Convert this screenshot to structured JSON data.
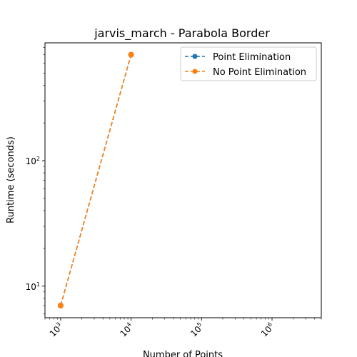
{
  "chart_data": {
    "type": "line",
    "title": "jarvis_march - Parabola Border",
    "xlabel": "Number of Points",
    "ylabel": "Runtime (seconds)",
    "xscale": "log",
    "yscale": "log",
    "xlim": [
      600,
      5000000
    ],
    "ylim": [
      5.6,
      870
    ],
    "x_ticks": [
      {
        "value": 1000,
        "base": "10",
        "exp": "3"
      },
      {
        "value": 10000,
        "base": "10",
        "exp": "4"
      },
      {
        "value": 100000,
        "base": "10",
        "exp": "5"
      },
      {
        "value": 1000000,
        "base": "10",
        "exp": "6"
      }
    ],
    "y_ticks": [
      {
        "value": 10,
        "base": "10",
        "exp": "1"
      },
      {
        "value": 100,
        "base": "10",
        "exp": "2"
      }
    ],
    "legend_position": "top-right",
    "grid": false,
    "series": [
      {
        "name": "Point Elimination",
        "color": "#1f77b4",
        "linestyle": "dashed",
        "marker": "circle",
        "x": [
          1000,
          10000
        ],
        "y": [
          7.0,
          700
        ]
      },
      {
        "name": "No Point Elimination",
        "color": "#ff7f0e",
        "linestyle": "dashed",
        "marker": "circle",
        "x": [
          1000,
          10000
        ],
        "y": [
          7.0,
          700
        ]
      }
    ]
  }
}
